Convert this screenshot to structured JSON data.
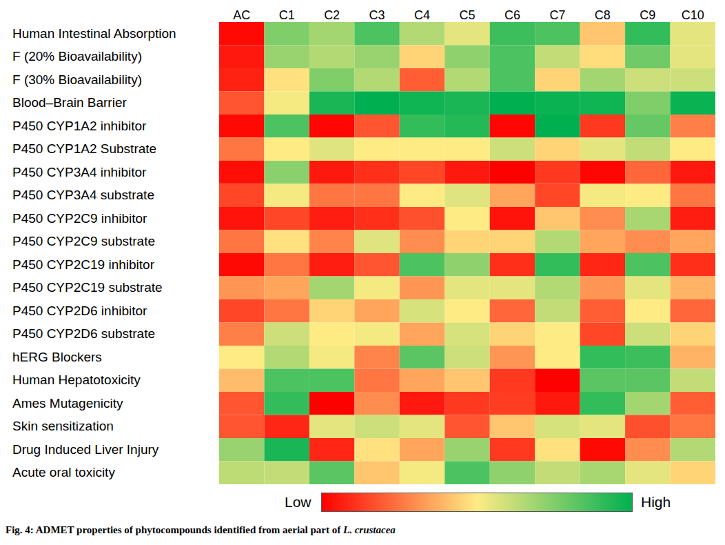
{
  "chart_data": {
    "type": "heatmap",
    "x_categories": [
      "AC",
      "C1",
      "C2",
      "C3",
      "C4",
      "C5",
      "C6",
      "C7",
      "C8",
      "C9",
      "C10"
    ],
    "y_categories": [
      "Human Intestinal Absorption",
      "F (20% Bioavailability)",
      "F (30% Bioavailability)",
      "Blood–Brain Barrier",
      "P450 CYP1A2 inhibitor",
      "P450 CYP1A2 Substrate",
      "P450 CYP3A4 inhibitor",
      "P450 CYP3A4 substrate",
      "P450 CYP2C9 inhibitor",
      "P450 CYP2C9 substrate",
      "P450 CYP2C19 inhibitor",
      "P450 CYP2C19 substrate",
      "P450 CYP2D6 inhibitor",
      "P450 CYP2D6 substrate",
      "hERG Blockers",
      "Human Hepatotoxicity",
      "Ames Mutagenicity",
      "Skin sensitization",
      "Drug Induced Liver Injury",
      "Acute oral toxicity"
    ],
    "cells": [
      [
        0.02,
        0.75,
        0.68,
        0.85,
        0.65,
        0.55,
        0.88,
        0.85,
        0.42,
        0.9,
        0.55
      ],
      [
        0.05,
        0.7,
        0.65,
        0.7,
        0.45,
        0.72,
        0.85,
        0.62,
        0.47,
        0.78,
        0.55
      ],
      [
        0.07,
        0.48,
        0.75,
        0.65,
        0.2,
        0.65,
        0.85,
        0.45,
        0.68,
        0.6,
        0.6
      ],
      [
        0.18,
        0.52,
        0.95,
        1.0,
        0.97,
        0.95,
        1.0,
        0.98,
        0.97,
        0.75,
        0.98
      ],
      [
        0.02,
        0.85,
        0.01,
        0.18,
        0.9,
        0.93,
        0.01,
        1.0,
        0.12,
        0.8,
        0.27
      ],
      [
        0.25,
        0.5,
        0.56,
        0.5,
        0.5,
        0.5,
        0.6,
        0.45,
        0.55,
        0.62,
        0.5
      ],
      [
        0.03,
        0.73,
        0.05,
        0.1,
        0.15,
        0.05,
        0.0,
        0.12,
        0.01,
        0.22,
        0.05
      ],
      [
        0.15,
        0.52,
        0.25,
        0.25,
        0.5,
        0.56,
        0.35,
        0.15,
        0.52,
        0.5,
        0.25
      ],
      [
        0.04,
        0.15,
        0.06,
        0.1,
        0.17,
        0.5,
        0.04,
        0.42,
        0.3,
        0.67,
        0.06
      ],
      [
        0.25,
        0.48,
        0.28,
        0.56,
        0.3,
        0.45,
        0.45,
        0.65,
        0.35,
        0.3,
        0.35
      ],
      [
        0.02,
        0.25,
        0.06,
        0.18,
        0.85,
        0.72,
        0.1,
        0.9,
        0.08,
        0.85,
        0.1
      ],
      [
        0.32,
        0.35,
        0.68,
        0.52,
        0.32,
        0.55,
        0.55,
        0.65,
        0.32,
        0.55,
        0.38
      ],
      [
        0.15,
        0.25,
        0.45,
        0.35,
        0.58,
        0.5,
        0.22,
        0.62,
        0.2,
        0.5,
        0.22
      ],
      [
        0.27,
        0.6,
        0.5,
        0.52,
        0.35,
        0.58,
        0.45,
        0.5,
        0.15,
        0.6,
        0.45
      ],
      [
        0.5,
        0.65,
        0.52,
        0.28,
        0.82,
        0.6,
        0.32,
        0.5,
        0.9,
        0.88,
        0.38
      ],
      [
        0.4,
        0.85,
        0.85,
        0.25,
        0.35,
        0.42,
        0.12,
        0.0,
        0.82,
        0.82,
        0.62
      ],
      [
        0.18,
        0.9,
        0.0,
        0.3,
        0.05,
        0.12,
        0.13,
        0.05,
        0.9,
        0.68,
        0.2
      ],
      [
        0.18,
        0.08,
        0.55,
        0.6,
        0.55,
        0.18,
        0.42,
        0.58,
        0.55,
        0.17,
        0.25
      ],
      [
        0.7,
        0.95,
        0.08,
        0.48,
        0.35,
        0.7,
        0.12,
        0.48,
        0.02,
        0.3,
        0.65
      ],
      [
        0.63,
        0.62,
        0.82,
        0.42,
        0.52,
        0.85,
        0.72,
        0.62,
        0.67,
        0.55,
        0.45
      ]
    ],
    "colorbar": {
      "range": [
        0,
        1
      ],
      "colors": [
        "#ff0000",
        "#ffeb84",
        "#00b050"
      ],
      "low_label": "Low",
      "high_label": "High"
    },
    "caption": [
      "Fig. 4: ADMET properties of phytocompounds identified from aerial part of ",
      "L. crustacea"
    ]
  }
}
